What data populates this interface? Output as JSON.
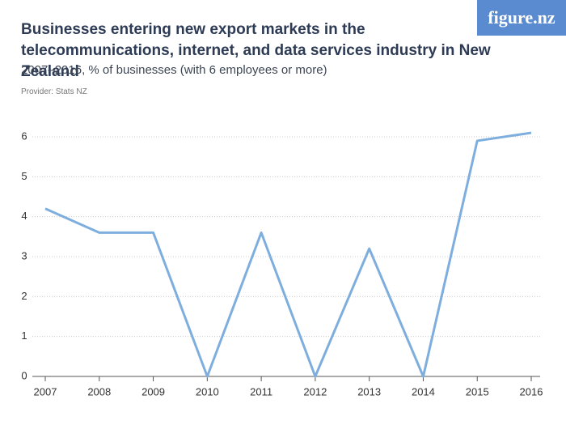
{
  "chart_data": {
    "type": "line",
    "title": "Businesses entering new export markets in the telecommunications, internet, and data services industry in New Zealand",
    "subtitle": "2007–2016, % of businesses (with 6 employees or more)",
    "provider": "Provider: Stats NZ",
    "logo": "figure.nz",
    "categories": [
      "2007",
      "2008",
      "2009",
      "2010",
      "2011",
      "2012",
      "2013",
      "2014",
      "2015",
      "2016"
    ],
    "series": [
      {
        "name": "Businesses entering new export markets",
        "color": "#7eaedd",
        "values": [
          4.2,
          3.6,
          3.6,
          0,
          3.6,
          0,
          3.2,
          0,
          5.9,
          6.1
        ]
      }
    ],
    "ylim": [
      0,
      6
    ],
    "yticks": [
      0,
      1,
      2,
      3,
      4,
      5,
      6
    ],
    "grid": true
  }
}
